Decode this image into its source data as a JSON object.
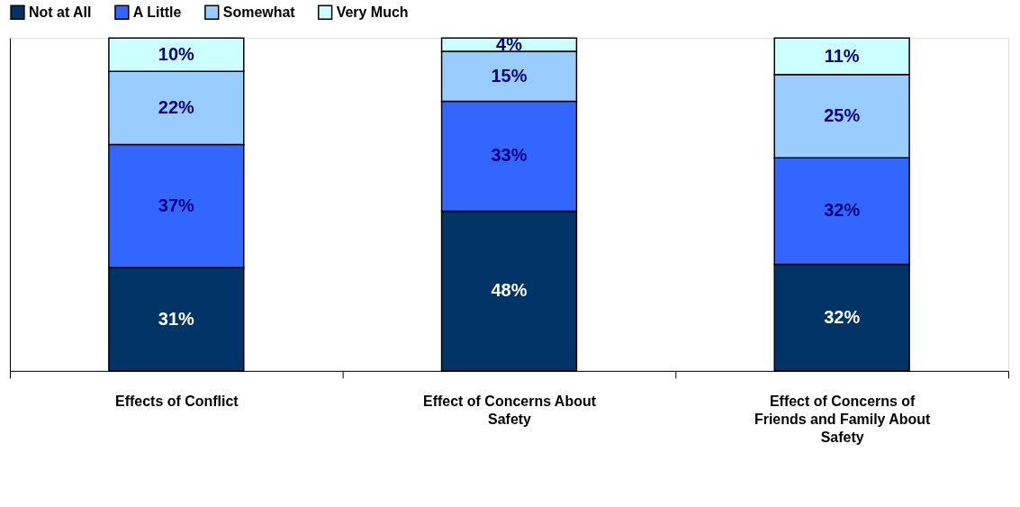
{
  "chart_data": {
    "type": "bar",
    "stacked": true,
    "categories": [
      "Effects of Conflict",
      "Effect of Concerns About Safety",
      "Effect of Concerns of Friends and Family About Safety"
    ],
    "series": [
      {
        "name": "Not at All",
        "color": "#003366",
        "values": [
          31,
          48,
          32
        ],
        "value_labels": [
          "31%",
          "48%",
          "32%"
        ]
      },
      {
        "name": "A Little",
        "color": "#3366ff",
        "values": [
          37,
          33,
          32
        ],
        "value_labels": [
          "37%",
          "33%",
          "32%"
        ]
      },
      {
        "name": "Somewhat",
        "color": "#99ccff",
        "values": [
          22,
          15,
          25
        ],
        "value_labels": [
          "22%",
          "15%",
          "25%"
        ]
      },
      {
        "name": "Very Much",
        "color": "#ccffff",
        "values": [
          10,
          4,
          11
        ],
        "value_labels": [
          "10%",
          "4%",
          "11%"
        ]
      }
    ],
    "ylim": [
      0,
      100
    ],
    "tick_labels": "x",
    "grid": false,
    "legend": "top"
  }
}
